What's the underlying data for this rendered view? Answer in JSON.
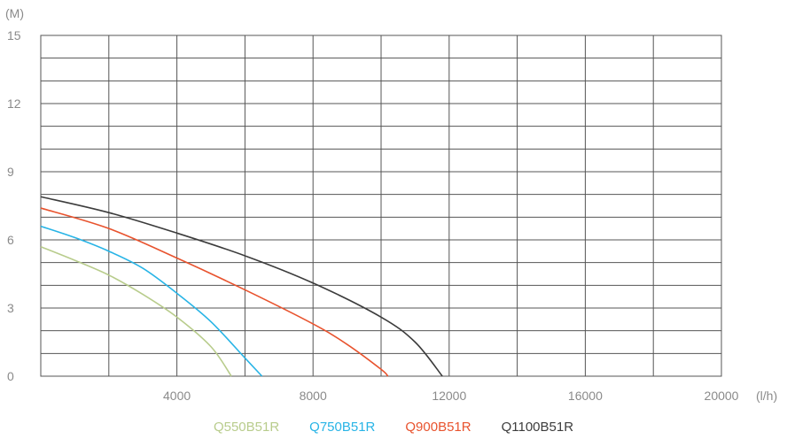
{
  "chart_data": {
    "type": "line",
    "title": "",
    "xlabel": "(l/h)",
    "ylabel": "(M)",
    "xlim": [
      0,
      20000
    ],
    "ylim": [
      0,
      15
    ],
    "x_ticks": [
      "4000",
      "8000",
      "12000",
      "16000",
      "20000"
    ],
    "y_ticks": [
      "0",
      "3",
      "6",
      "9",
      "12",
      "15"
    ],
    "grid": true,
    "legend_position": "bottom-center",
    "series": [
      {
        "name": "Q550B51R",
        "color": "#b8cc8c",
        "points": [
          [
            0,
            5.7
          ],
          [
            1000,
            5.1
          ],
          [
            2000,
            4.45
          ],
          [
            3000,
            3.6
          ],
          [
            4000,
            2.6
          ],
          [
            5000,
            1.3
          ],
          [
            5600,
            0
          ]
        ]
      },
      {
        "name": "Q750B51R",
        "color": "#28b4e6",
        "points": [
          [
            0,
            6.6
          ],
          [
            1000,
            6.1
          ],
          [
            2000,
            5.5
          ],
          [
            3000,
            4.75
          ],
          [
            4000,
            3.65
          ],
          [
            5000,
            2.4
          ],
          [
            6000,
            0.8
          ],
          [
            6500,
            0
          ]
        ]
      },
      {
        "name": "Q900B51R",
        "color": "#e8532e",
        "points": [
          [
            0,
            7.4
          ],
          [
            2000,
            6.5
          ],
          [
            4000,
            5.2
          ],
          [
            6000,
            3.8
          ],
          [
            8000,
            2.3
          ],
          [
            9000,
            1.4
          ],
          [
            10000,
            0.3
          ],
          [
            10200,
            0
          ]
        ]
      },
      {
        "name": "Q1100B51R",
        "color": "#3c3c3c",
        "points": [
          [
            0,
            7.9
          ],
          [
            2000,
            7.2
          ],
          [
            4000,
            6.3
          ],
          [
            6000,
            5.3
          ],
          [
            8000,
            4.1
          ],
          [
            10000,
            2.6
          ],
          [
            11000,
            1.5
          ],
          [
            11800,
            0
          ]
        ]
      }
    ]
  }
}
